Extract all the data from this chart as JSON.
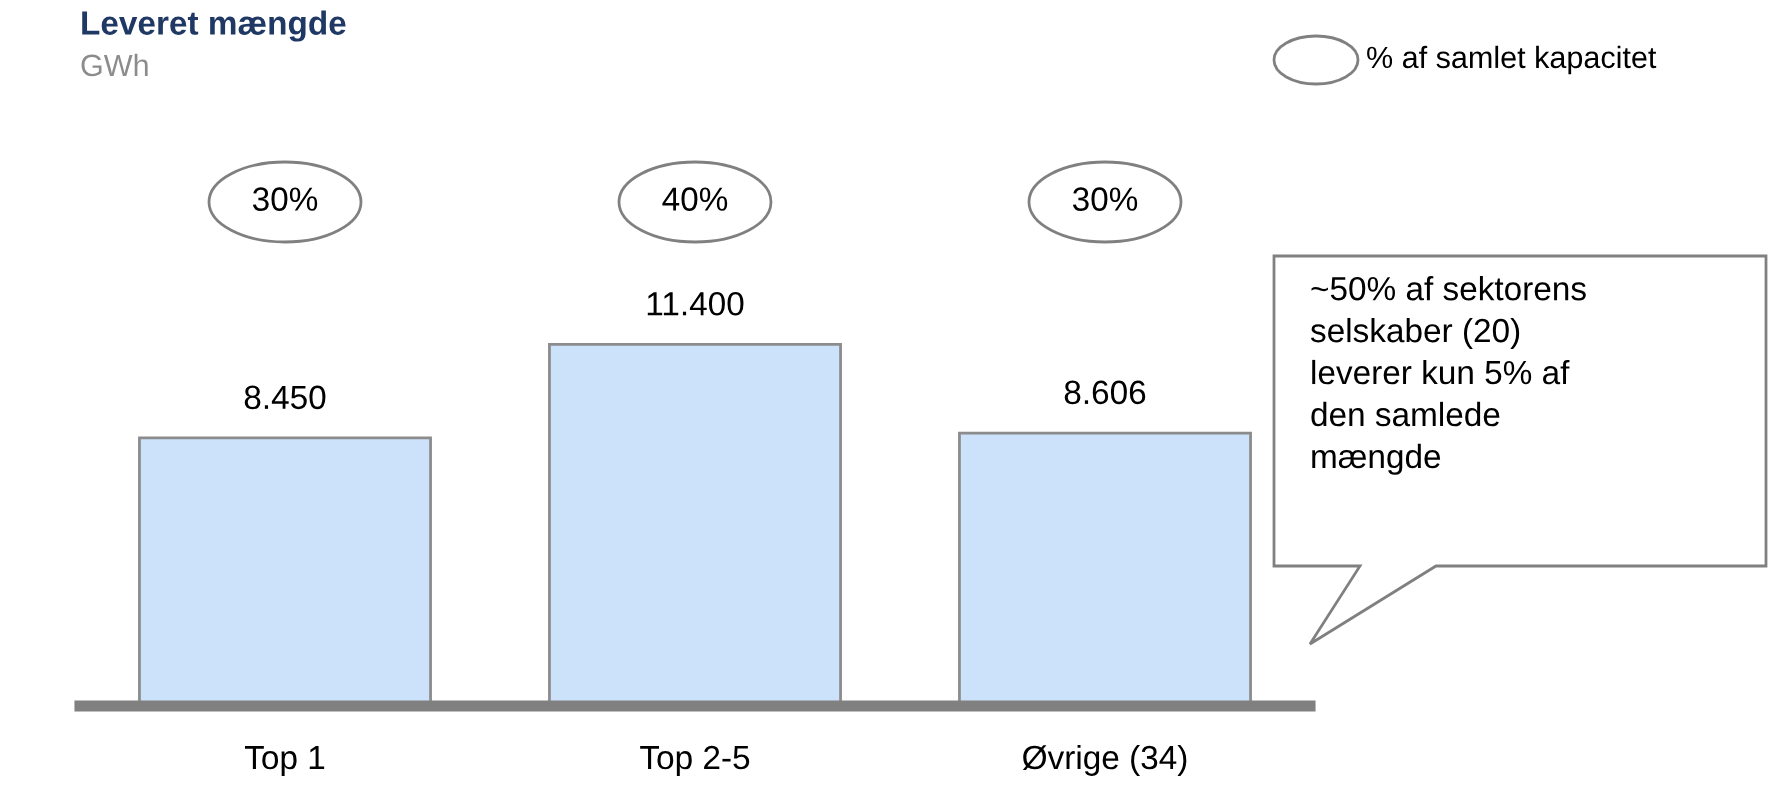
{
  "chart_data": {
    "type": "bar",
    "title": "Leveret mængde",
    "subtitle": "GWh",
    "categories": [
      "Top 1",
      "Top 2-5",
      "Øvrige (34)"
    ],
    "values": [
      8450,
      11400,
      8606
    ],
    "value_labels": [
      "8.450",
      "11.400",
      "8.606"
    ],
    "color": "#cce2fb",
    "annotations": [
      "30%",
      "40%",
      "30%",
      "% af samlet kapacitet",
      "~50% af sektorens\nselskaber (20)\nleverer kun 5% af\nden samlede\nmængde"
    ]
  }
}
